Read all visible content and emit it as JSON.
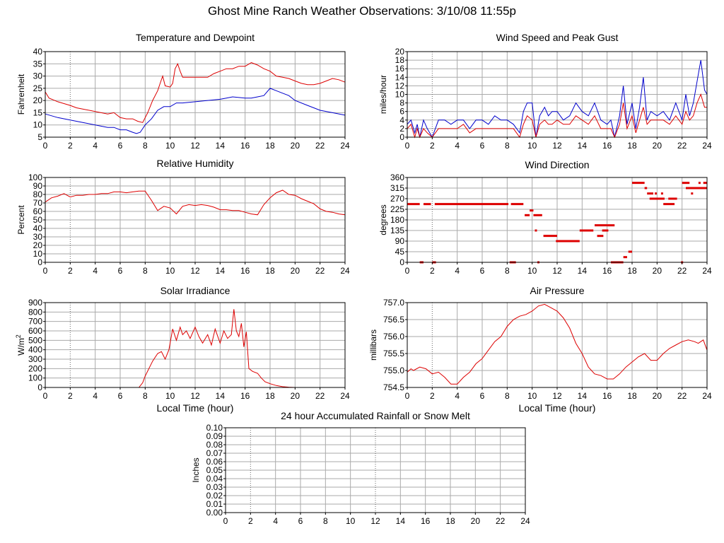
{
  "page_title": "Ghost Mine Ranch Weather Observations: 3/10/08 11:55p",
  "colors": {
    "series_primary": "#dd0000",
    "series_secondary": "#0000cc",
    "grid": "#aaaaaa"
  },
  "chart_data": [
    {
      "id": "temp",
      "type": "line",
      "title": "Temperature and Dewpoint",
      "xlabel": "",
      "ylabel": "Fahrenheit",
      "xlim": [
        0,
        24
      ],
      "ylim": [
        5,
        40
      ],
      "xticks": [
        0,
        2,
        4,
        6,
        8,
        10,
        12,
        14,
        16,
        18,
        20,
        22,
        24
      ],
      "yticks": [
        5,
        10,
        15,
        20,
        25,
        30,
        35,
        40
      ],
      "series": [
        {
          "color": "#dd0000",
          "x": [
            0,
            0.3,
            1,
            2,
            2.5,
            3,
            4,
            5,
            5.5,
            6,
            6.5,
            7,
            7.4,
            7.8,
            8.2,
            8.6,
            9,
            9.2,
            9.4,
            9.6,
            10,
            10.2,
            10.4,
            10.6,
            10.8,
            11,
            12,
            13,
            13.5,
            14,
            14.5,
            15,
            15.5,
            16,
            16.5,
            17,
            17.5,
            18,
            18.5,
            19,
            19.5,
            20,
            20.5,
            21,
            21.5,
            22,
            22.5,
            23,
            23.5,
            24
          ],
          "y": [
            23.5,
            21,
            19.5,
            18,
            17,
            16.5,
            15.5,
            14.5,
            15,
            13,
            12.5,
            12.5,
            11.5,
            11,
            15,
            20,
            24,
            27,
            30,
            26,
            25.5,
            27,
            33,
            35,
            32,
            29.5,
            29.5,
            29.5,
            31,
            32,
            33,
            33,
            34,
            34,
            35.5,
            34.5,
            33,
            32,
            30,
            29.5,
            29,
            28,
            27,
            26.5,
            26.5,
            27,
            28,
            29,
            28.5,
            27.5
          ]
        },
        {
          "color": "#0000cc",
          "x": [
            0,
            1,
            2,
            3,
            4,
            5,
            5.5,
            6,
            6.5,
            7,
            7.3,
            7.6,
            8,
            8.5,
            9,
            9.5,
            10,
            10.5,
            11,
            12,
            13,
            14,
            14.5,
            15,
            16,
            16.5,
            17,
            17.5,
            18,
            18.5,
            19,
            19.5,
            20,
            21,
            21.5,
            22,
            23,
            24
          ],
          "y": [
            14.5,
            13,
            12,
            11,
            10,
            9,
            9,
            8,
            8,
            7,
            6.5,
            7,
            10,
            12.5,
            16,
            17.5,
            17.5,
            19,
            19,
            19.5,
            20,
            20.5,
            21,
            21.5,
            21,
            21,
            21.5,
            22,
            25,
            24,
            23,
            22,
            20,
            18,
            17,
            16,
            15,
            14
          ]
        }
      ]
    },
    {
      "id": "wind",
      "type": "line",
      "title": "Wind Speed and Peak Gust",
      "xlabel": "",
      "ylabel": "miles/hour",
      "xlim": [
        0,
        24
      ],
      "ylim": [
        0,
        20
      ],
      "xticks": [
        0,
        2,
        4,
        6,
        8,
        10,
        12,
        14,
        16,
        18,
        20,
        22,
        24
      ],
      "yticks": [
        0,
        2,
        4,
        6,
        8,
        10,
        12,
        14,
        16,
        18,
        20
      ],
      "series": [
        {
          "color": "#0000cc",
          "x": [
            0,
            0.3,
            0.6,
            0.8,
            1,
            1.3,
            1.6,
            2,
            2.5,
            3,
            3.5,
            4,
            4.5,
            5,
            5.5,
            6,
            6.5,
            7,
            7.5,
            8,
            8.5,
            9,
            9.3,
            9.6,
            10,
            10.3,
            10.6,
            11,
            11.3,
            11.6,
            12,
            12.5,
            13,
            13.5,
            14,
            14.5,
            15,
            15.5,
            16,
            16.3,
            16.6,
            17,
            17.3,
            17.6,
            18,
            18.3,
            18.6,
            18.9,
            19.2,
            19.5,
            20,
            20.5,
            21,
            21.5,
            22,
            22.3,
            22.6,
            22.9,
            23.2,
            23.5,
            23.8,
            24
          ],
          "y": [
            3,
            4,
            1,
            3,
            0,
            4,
            2,
            0,
            4,
            4,
            3,
            4,
            4,
            2,
            4,
            4,
            3,
            5,
            4,
            4,
            3,
            1,
            6,
            8,
            8,
            0,
            5,
            7,
            5,
            6,
            6,
            4,
            5,
            8,
            6,
            5,
            8,
            4,
            3,
            4,
            0,
            5,
            12,
            3,
            8,
            2,
            7,
            14,
            4,
            6,
            5,
            6,
            4,
            8,
            4,
            10,
            5,
            8,
            13,
            18,
            11,
            10
          ]
        },
        {
          "color": "#dd0000",
          "x": [
            0,
            0.3,
            0.6,
            0.8,
            1,
            1.3,
            1.6,
            2,
            2.5,
            3,
            3.5,
            4,
            4.5,
            5,
            5.5,
            6,
            6.5,
            7,
            7.5,
            8,
            8.5,
            9,
            9.3,
            9.6,
            10,
            10.3,
            10.6,
            11,
            11.3,
            11.6,
            12,
            12.5,
            13,
            13.5,
            14,
            14.5,
            15,
            15.5,
            16,
            16.3,
            16.6,
            17,
            17.3,
            17.6,
            18,
            18.3,
            18.6,
            18.9,
            19.2,
            19.5,
            20,
            20.5,
            21,
            21.5,
            22,
            22.3,
            22.6,
            22.9,
            23.2,
            23.5,
            23.8,
            24
          ],
          "y": [
            2,
            3,
            0,
            2,
            0,
            2,
            1,
            0,
            2,
            2,
            2,
            2,
            3,
            1,
            2,
            2,
            2,
            2,
            2,
            2,
            2,
            0,
            3,
            5,
            4,
            0,
            3,
            4,
            3,
            3,
            4,
            3,
            3,
            5,
            4,
            3,
            5,
            2,
            2,
            2,
            0,
            3,
            8,
            2,
            5,
            1,
            4,
            7,
            3,
            4,
            4,
            4,
            3,
            5,
            3,
            6,
            4,
            5,
            8,
            10,
            7,
            7
          ]
        }
      ]
    },
    {
      "id": "rh",
      "type": "line",
      "title": "Relative Humidity",
      "xlabel": "",
      "ylabel": "Percent",
      "xlim": [
        0,
        24
      ],
      "ylim": [
        0,
        100
      ],
      "xticks": [
        0,
        2,
        4,
        6,
        8,
        10,
        12,
        14,
        16,
        18,
        20,
        22,
        24
      ],
      "yticks": [
        0,
        10,
        20,
        30,
        40,
        50,
        60,
        70,
        80,
        90,
        100
      ],
      "series": [
        {
          "color": "#dd0000",
          "x": [
            0,
            0.5,
            1,
            1.5,
            2,
            2.5,
            3,
            3.5,
            4,
            4.5,
            5,
            5.5,
            6,
            6.5,
            7,
            7.5,
            8,
            8.5,
            9,
            9.5,
            10,
            10.5,
            11,
            11.5,
            12,
            12.5,
            13,
            13.5,
            14,
            14.5,
            15,
            15.5,
            16,
            16.5,
            17,
            17.5,
            18,
            18.5,
            19,
            19.5,
            20,
            20.5,
            21,
            21.5,
            22,
            22.5,
            23,
            23.5,
            24
          ],
          "y": [
            71,
            76,
            78,
            81,
            77,
            79,
            79,
            80,
            80,
            81,
            81,
            83,
            83,
            82,
            83,
            84,
            84,
            73,
            61,
            66,
            64,
            57,
            66,
            68,
            67,
            68,
            67,
            65,
            62,
            62,
            61,
            61,
            59,
            57,
            56,
            68,
            76,
            82,
            85,
            80,
            79,
            75,
            72,
            69,
            63,
            60,
            59,
            57,
            56
          ]
        }
      ]
    },
    {
      "id": "wdir",
      "type": "scatter",
      "title": "Wind Direction",
      "xlabel": "",
      "ylabel": "degrees",
      "xlim": [
        0,
        24
      ],
      "ylim": [
        0,
        360
      ],
      "xticks": [
        0,
        2,
        4,
        6,
        8,
        10,
        12,
        14,
        16,
        18,
        20,
        22,
        24
      ],
      "yticks": [
        0,
        45,
        90,
        135,
        180,
        225,
        270,
        315,
        360
      ],
      "segments": [
        [
          0,
          1,
          247
        ],
        [
          1.3,
          1.9,
          247
        ],
        [
          2.2,
          8.1,
          247
        ],
        [
          8.3,
          9.3,
          247
        ],
        [
          9.4,
          9.8,
          200
        ],
        [
          9.8,
          10.1,
          220
        ],
        [
          10.1,
          10.8,
          200
        ],
        [
          10.9,
          12,
          112
        ],
        [
          11.9,
          13.8,
          90
        ],
        [
          13.8,
          14.9,
          135
        ],
        [
          15,
          16,
          157
        ],
        [
          16,
          16.6,
          157
        ],
        [
          15.2,
          15.7,
          112
        ],
        [
          15.6,
          16.1,
          135
        ],
        [
          18,
          19,
          337
        ],
        [
          19,
          19.2,
          315
        ],
        [
          19.2,
          19.7,
          292
        ],
        [
          19.4,
          20.6,
          270
        ],
        [
          20.5,
          21.4,
          247
        ],
        [
          20.9,
          21.6,
          270
        ],
        [
          22,
          22.6,
          337
        ],
        [
          22.3,
          24,
          315
        ],
        [
          23.7,
          24,
          337
        ],
        [
          1,
          1.3,
          0
        ],
        [
          2,
          2.3,
          0
        ],
        [
          8.2,
          8.7,
          0
        ],
        [
          16.3,
          17.3,
          0
        ],
        [
          17.3,
          17.6,
          22
        ],
        [
          17.7,
          18,
          45
        ]
      ],
      "points": [
        [
          10.3,
          135
        ],
        [
          19.9,
          292
        ],
        [
          20.4,
          292
        ],
        [
          22.8,
          292
        ],
        [
          23.4,
          337
        ],
        [
          22,
          0
        ],
        [
          10.5,
          0
        ]
      ]
    },
    {
      "id": "solar",
      "type": "line",
      "title": "Solar Irradiance",
      "xlabel": "Local Time (hour)",
      "ylabel": "W/m",
      "ylabel_sup": "2",
      "xlim": [
        0,
        24
      ],
      "ylim": [
        0,
        900
      ],
      "xticks": [
        0,
        2,
        4,
        6,
        8,
        10,
        12,
        14,
        16,
        18,
        20,
        22,
        24
      ],
      "yticks": [
        0,
        100,
        200,
        300,
        400,
        500,
        600,
        700,
        800,
        900
      ],
      "series": [
        {
          "color": "#dd0000",
          "x": [
            0,
            7.5,
            7.8,
            8,
            8.3,
            8.6,
            9,
            9.3,
            9.6,
            9.9,
            10.2,
            10.5,
            10.8,
            11,
            11.3,
            11.6,
            12,
            12.3,
            12.6,
            13,
            13.3,
            13.6,
            14,
            14.3,
            14.6,
            14.9,
            15.1,
            15.3,
            15.5,
            15.7,
            15.9,
            16.1,
            16.3,
            16.6,
            17,
            17.3,
            17.6,
            18,
            18.5,
            19,
            19.5,
            20,
            24
          ],
          "y": [
            0,
            0,
            50,
            120,
            200,
            280,
            360,
            380,
            300,
            400,
            620,
            500,
            640,
            560,
            600,
            520,
            640,
            540,
            470,
            560,
            450,
            620,
            470,
            600,
            520,
            560,
            830,
            600,
            540,
            680,
            430,
            590,
            200,
            170,
            150,
            100,
            60,
            40,
            20,
            8,
            3,
            0,
            0
          ]
        }
      ]
    },
    {
      "id": "pressure",
      "type": "line",
      "title": "Air Pressure",
      "xlabel": "Local Time (hour)",
      "ylabel": "millibars",
      "xlim": [
        0,
        24
      ],
      "ylim": [
        754.5,
        757
      ],
      "xticks": [
        0,
        2,
        4,
        6,
        8,
        10,
        12,
        14,
        16,
        18,
        20,
        22,
        24
      ],
      "ytick_labels": [
        "754.5",
        "755.0",
        "755.5",
        "756.0",
        "756.5",
        "757.0"
      ],
      "series": [
        {
          "color": "#dd0000",
          "x": [
            0,
            0.3,
            0.5,
            1,
            1.5,
            2,
            2.5,
            3,
            3.5,
            4,
            4.5,
            5,
            5.5,
            6,
            6.5,
            7,
            7.5,
            8,
            8.5,
            9,
            9.5,
            10,
            10.5,
            11,
            11.5,
            12,
            12.5,
            13,
            13.5,
            14,
            14.5,
            15,
            15.5,
            16,
            16.5,
            17,
            17.5,
            18,
            18.5,
            19,
            19.5,
            20,
            20.5,
            21,
            21.5,
            22,
            22.5,
            23,
            23.3,
            23.7,
            24
          ],
          "y": [
            754.95,
            755.05,
            755,
            755.1,
            755.05,
            754.9,
            754.95,
            754.8,
            754.6,
            754.6,
            754.8,
            754.95,
            755.2,
            755.35,
            755.6,
            755.85,
            756,
            756.3,
            756.5,
            756.6,
            756.65,
            756.75,
            756.9,
            756.95,
            756.85,
            756.75,
            756.55,
            756.25,
            755.8,
            755.5,
            755.1,
            754.9,
            754.85,
            754.75,
            754.75,
            754.9,
            755.1,
            755.25,
            755.4,
            755.5,
            755.3,
            755.3,
            755.5,
            755.65,
            755.75,
            755.85,
            755.9,
            755.85,
            755.8,
            755.9,
            755.6
          ]
        }
      ]
    },
    {
      "id": "rain",
      "type": "line",
      "title": "24 hour Accumulated Rainfall or Snow Melt",
      "xlabel": "",
      "ylabel": "Inches",
      "xlim": [
        0,
        24
      ],
      "ylim": [
        0,
        0.1
      ],
      "xticks": [
        0,
        2,
        4,
        6,
        8,
        10,
        12,
        14,
        16,
        18,
        20,
        22,
        24
      ],
      "ytick_labels": [
        "0.00",
        "0.01",
        "0.02",
        "0.03",
        "0.04",
        "0.05",
        "0.06",
        "0.07",
        "0.08",
        "0.09",
        "0.10"
      ],
      "series": [
        {
          "color": "#dd0000",
          "x": [
            0,
            24
          ],
          "y": [
            0,
            0
          ]
        }
      ]
    }
  ]
}
